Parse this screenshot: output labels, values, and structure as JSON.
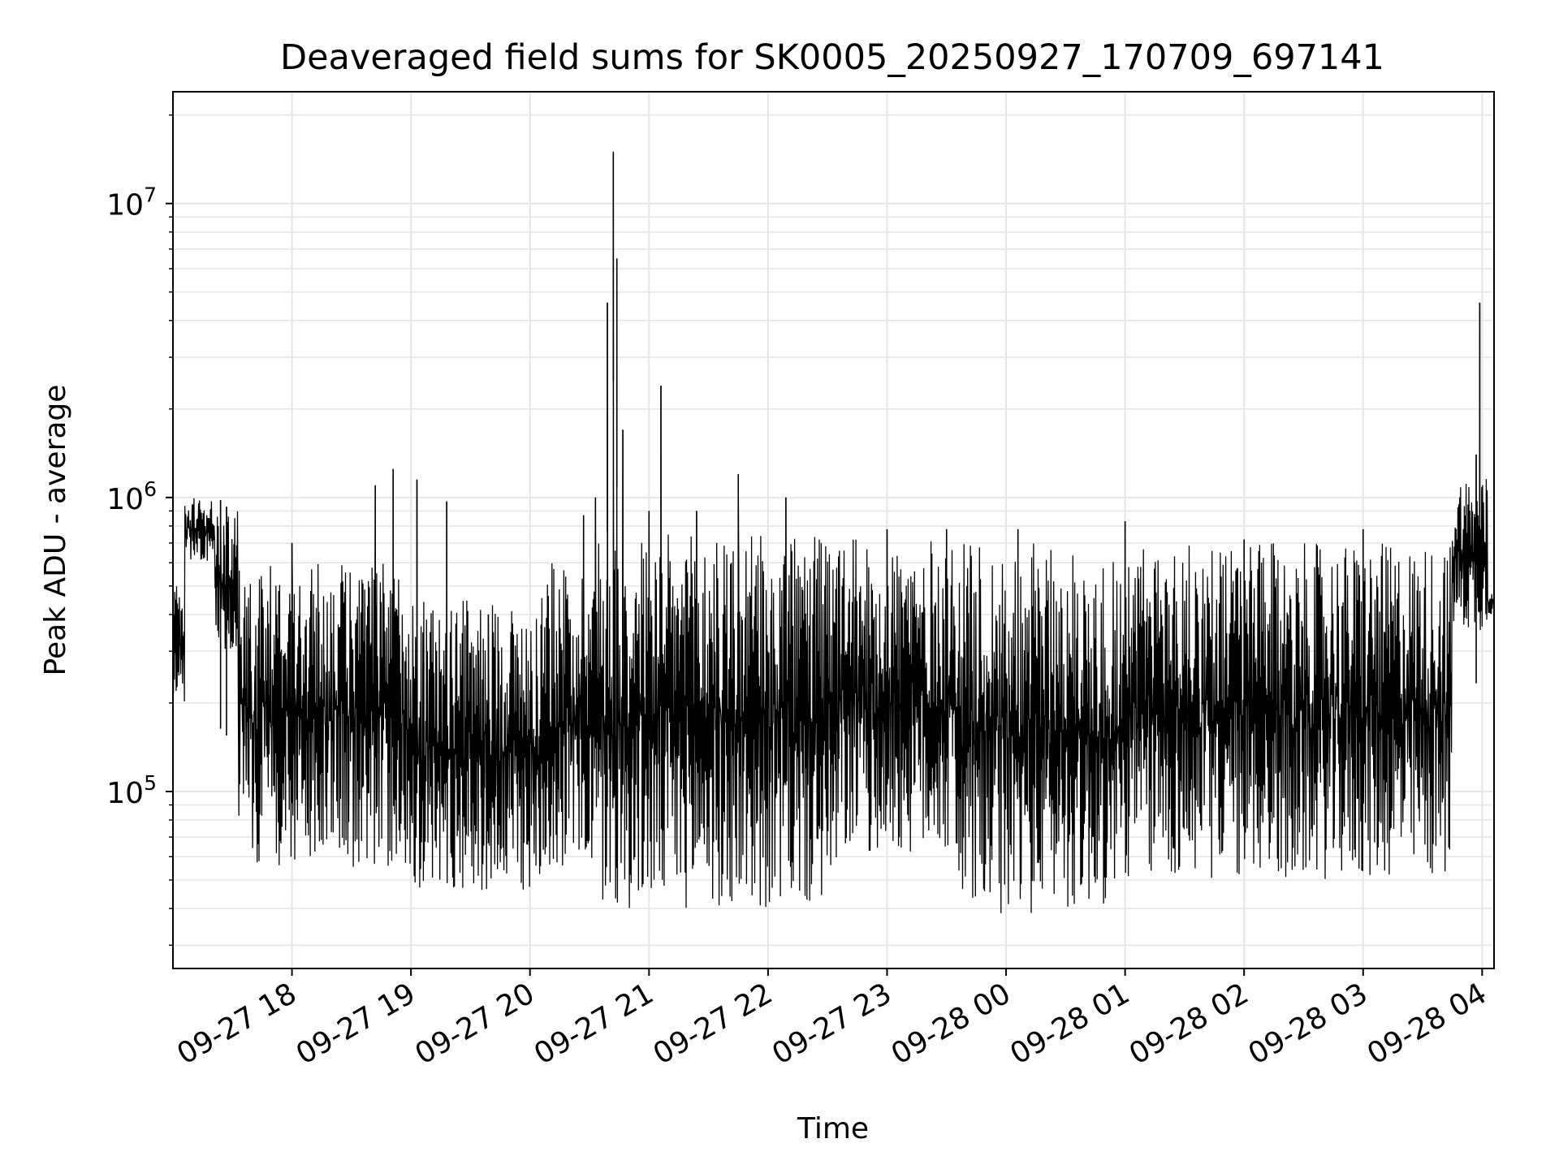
{
  "chart_data": {
    "type": "line",
    "title": "Deaveraged field sums for SK0005_20250927_170709_697141",
    "xlabel": "Time",
    "ylabel": "Peak ADU - average",
    "yscale": "log",
    "ylim": [
      25000,
      24000000
    ],
    "xlim_hours_from_0927_17": [
      0.0,
      11.1
    ],
    "grid": true,
    "line_color": "#000000",
    "grid_color": "#e6e6e6",
    "x_ticks": [
      {
        "label": "09-27 18",
        "hour": 1
      },
      {
        "label": "09-27 19",
        "hour": 2
      },
      {
        "label": "09-27 20",
        "hour": 3
      },
      {
        "label": "09-27 21",
        "hour": 4
      },
      {
        "label": "09-27 22",
        "hour": 5
      },
      {
        "label": "09-27 23",
        "hour": 6
      },
      {
        "label": "09-28 00",
        "hour": 7
      },
      {
        "label": "09-28 01",
        "hour": 8
      },
      {
        "label": "09-28 02",
        "hour": 9
      },
      {
        "label": "09-28 03",
        "hour": 10
      },
      {
        "label": "09-28 04",
        "hour": 11
      }
    ],
    "y_major_ticks": [
      {
        "base": "10",
        "exp": "5",
        "value": 100000
      },
      {
        "base": "10",
        "exp": "6",
        "value": 1000000
      },
      {
        "base": "10",
        "exp": "7",
        "value": 10000000
      }
    ],
    "series": [
      {
        "name": "Peak ADU - average",
        "envelope_segments": [
          {
            "start": 0.0,
            "end": 0.1,
            "low": 200000,
            "high": 500000
          },
          {
            "start": 0.1,
            "end": 0.35,
            "low": 600000,
            "high": 1000000
          },
          {
            "start": 0.35,
            "end": 0.55,
            "low": 300000,
            "high": 900000
          },
          {
            "start": 0.55,
            "end": 2.0,
            "low": 55000,
            "high": 600000
          },
          {
            "start": 2.0,
            "end": 3.1,
            "low": 45000,
            "high": 450000
          },
          {
            "start": 3.1,
            "end": 3.5,
            "low": 55000,
            "high": 600000
          },
          {
            "start": 3.5,
            "end": 5.6,
            "low": 40000,
            "high": 750000
          },
          {
            "start": 5.6,
            "end": 6.6,
            "low": 60000,
            "high": 720000
          },
          {
            "start": 6.6,
            "end": 7.4,
            "low": 38000,
            "high": 700000
          },
          {
            "start": 7.4,
            "end": 8.0,
            "low": 40000,
            "high": 650000
          },
          {
            "start": 8.0,
            "end": 10.75,
            "low": 50000,
            "high": 700000
          },
          {
            "start": 10.75,
            "end": 11.05,
            "low": 350000,
            "high": 1200000
          },
          {
            "start": 11.05,
            "end": 11.1,
            "low": 400000,
            "high": 480000
          }
        ],
        "spikes": [
          {
            "hour": 0.4,
            "value": 980000
          },
          {
            "hour": 0.45,
            "value": 930000
          },
          {
            "hour": 1.0,
            "value": 700000
          },
          {
            "hour": 1.7,
            "value": 1100000
          },
          {
            "hour": 1.85,
            "value": 1250000
          },
          {
            "hour": 2.05,
            "value": 1150000
          },
          {
            "hour": 2.3,
            "value": 970000
          },
          {
            "hour": 2.65,
            "value": 400000
          },
          {
            "hour": 3.45,
            "value": 870000
          },
          {
            "hour": 3.55,
            "value": 1000000
          },
          {
            "hour": 3.65,
            "value": 4600000
          },
          {
            "hour": 3.7,
            "value": 15000000
          },
          {
            "hour": 3.73,
            "value": 6500000
          },
          {
            "hour": 3.78,
            "value": 1700000
          },
          {
            "hour": 4.0,
            "value": 900000
          },
          {
            "hour": 4.1,
            "value": 2400000
          },
          {
            "hour": 4.4,
            "value": 900000
          },
          {
            "hour": 4.75,
            "value": 1200000
          },
          {
            "hour": 5.15,
            "value": 1000000
          },
          {
            "hour": 6.0,
            "value": 780000
          },
          {
            "hour": 6.5,
            "value": 780000
          },
          {
            "hour": 7.1,
            "value": 780000
          },
          {
            "hour": 8.0,
            "value": 830000
          },
          {
            "hour": 9.0,
            "value": 720000
          },
          {
            "hour": 10.0,
            "value": 780000
          },
          {
            "hour": 10.95,
            "value": 1400000
          },
          {
            "hour": 10.98,
            "value": 4600000
          }
        ]
      }
    ]
  }
}
